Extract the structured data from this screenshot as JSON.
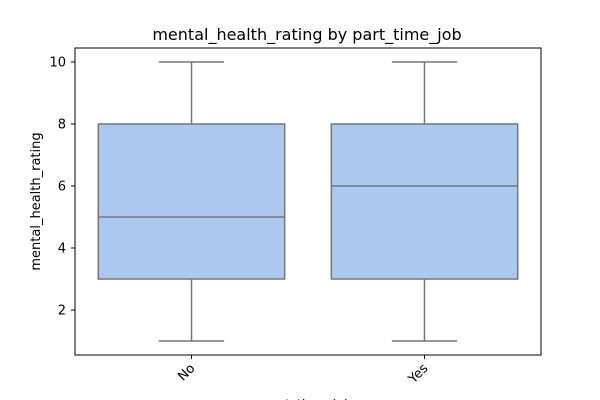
{
  "chart_data": {
    "type": "box",
    "title": "mental_health_rating by part_time_job",
    "xlabel": "part_time_job",
    "ylabel": "mental_health_rating",
    "categories": [
      "No",
      "Yes"
    ],
    "boxes": [
      {
        "category": "No",
        "whisker_low": 1,
        "q1": 3,
        "median": 5,
        "q3": 8,
        "whisker_high": 10
      },
      {
        "category": "Yes",
        "whisker_low": 1,
        "q1": 3,
        "median": 6,
        "q3": 8,
        "whisker_high": 10
      }
    ],
    "ylim": [
      0.55,
      10.45
    ],
    "yticks": [
      2,
      4,
      6,
      8,
      10
    ],
    "grid": false,
    "colors": {
      "box_fill": "#abc9ee",
      "box_edge": "#777777",
      "axis": "#000000"
    }
  }
}
